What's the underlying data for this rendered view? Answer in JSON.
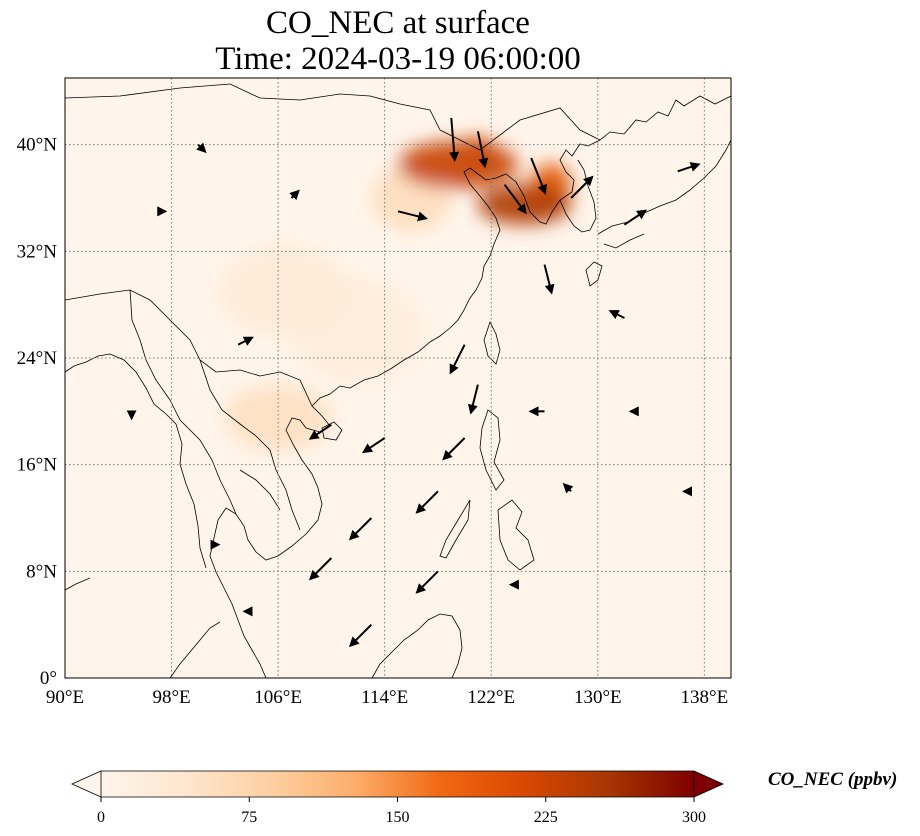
{
  "title": {
    "line1": "CO_NEC at surface",
    "line2": "Time: 2024-03-19 06:00:00"
  },
  "map": {
    "projection": "PlateCarree",
    "lon_range": [
      90,
      140
    ],
    "lat_range": [
      0,
      45
    ],
    "gridlines": "dotted",
    "lon_ticks": [
      {
        "value": 90,
        "label": "90°E"
      },
      {
        "value": 98,
        "label": "98°E"
      },
      {
        "value": 106,
        "label": "106°E"
      },
      {
        "value": 114,
        "label": "114°E"
      },
      {
        "value": 122,
        "label": "122°E"
      },
      {
        "value": 130,
        "label": "130°E"
      },
      {
        "value": 138,
        "label": "138°E"
      }
    ],
    "lat_ticks": [
      {
        "value": 0,
        "label": "0°"
      },
      {
        "value": 8,
        "label": "8°N"
      },
      {
        "value": 16,
        "label": "16°N"
      },
      {
        "value": 24,
        "label": "24°N"
      },
      {
        "value": 32,
        "label": "32°N"
      },
      {
        "value": 40,
        "label": "40°N"
      }
    ],
    "background_color": "#fff5eb",
    "features": [
      "coastlines",
      "country-borders",
      "wind-vectors"
    ]
  },
  "colorbar": {
    "label": "CO_NEC (ppbv)",
    "min": 0,
    "max": 300,
    "extend": "both",
    "colormap": "OrRd",
    "ticks": [
      {
        "value": 0,
        "label": "0"
      },
      {
        "value": 75,
        "label": "75"
      },
      {
        "value": 150,
        "label": "150"
      },
      {
        "value": 225,
        "label": "225"
      },
      {
        "value": 300,
        "label": "300"
      }
    ],
    "stops": [
      "#fff5eb",
      "#fee6ce",
      "#fdd0a2",
      "#fdae6b",
      "#f16913",
      "#d94801",
      "#a63603",
      "#7f0000"
    ]
  },
  "field": {
    "plumes": [
      {
        "lon": 119.5,
        "lat": 38.5,
        "lon_r": 4.5,
        "lat_r": 1.8,
        "value": 230
      },
      {
        "lon": 124.5,
        "lat": 35.5,
        "lon_r": 3.5,
        "lat_r": 1.5,
        "value": 250
      },
      {
        "lon": 126.5,
        "lat": 37.0,
        "lon_r": 1.5,
        "lat_r": 1.6,
        "value": 200
      },
      {
        "lon": 121.0,
        "lat": 39.8,
        "lon_r": 1.2,
        "lat_r": 0.8,
        "value": 210
      },
      {
        "lon": 116.0,
        "lat": 36.0,
        "lon_r": 3.0,
        "lat_r": 2.5,
        "value": 60
      },
      {
        "lon": 106.0,
        "lat": 19.5,
        "lon_r": 4.0,
        "lat_r": 2.5,
        "value": 55
      },
      {
        "lon": 106.5,
        "lat": 29.0,
        "lon_r": 5.0,
        "lat_r": 3.5,
        "value": 30
      },
      {
        "lon": 112.0,
        "lat": 26.0,
        "lon_r": 5.0,
        "lat_r": 4.0,
        "value": 22
      }
    ]
  },
  "wind_vectors": [
    {
      "lon": 115,
      "lat": 35,
      "u": 4,
      "v": -1
    },
    {
      "lon": 119,
      "lat": 42,
      "u": 0.5,
      "v": -6
    },
    {
      "lon": 121,
      "lat": 41,
      "u": 1,
      "v": -5
    },
    {
      "lon": 123,
      "lat": 37,
      "u": 3,
      "v": -4
    },
    {
      "lon": 125,
      "lat": 39,
      "u": 2,
      "v": -5
    },
    {
      "lon": 128,
      "lat": 36,
      "u": 3,
      "v": 3
    },
    {
      "lon": 126,
      "lat": 31,
      "u": 1,
      "v": -4
    },
    {
      "lon": 121,
      "lat": 22,
      "u": -1,
      "v": -4
    },
    {
      "lon": 120,
      "lat": 25,
      "u": -2,
      "v": -4
    },
    {
      "lon": 114,
      "lat": 18,
      "u": -3,
      "v": -2
    },
    {
      "lon": 110,
      "lat": 19,
      "u": -3,
      "v": -2
    },
    {
      "lon": 118,
      "lat": 14,
      "u": -3,
      "v": -3
    },
    {
      "lon": 113,
      "lat": 12,
      "u": -3,
      "v": -3
    },
    {
      "lon": 110,
      "lat": 9,
      "u": -3,
      "v": -3
    },
    {
      "lon": 118,
      "lat": 8,
      "u": -3,
      "v": -3
    },
    {
      "lon": 113,
      "lat": 4,
      "u": -3,
      "v": -3
    },
    {
      "lon": 120,
      "lat": 18,
      "u": -3,
      "v": -3
    },
    {
      "lon": 132,
      "lat": 34,
      "u": 3,
      "v": 2
    },
    {
      "lon": 136,
      "lat": 38,
      "u": 3,
      "v": 1
    },
    {
      "lon": 132,
      "lat": 27,
      "u": -2,
      "v": 1
    },
    {
      "lon": 103,
      "lat": 25,
      "u": 2,
      "v": 1
    },
    {
      "lon": 97,
      "lat": 35,
      "u": 1,
      "v": 0
    },
    {
      "lon": 100,
      "lat": 40,
      "u": 1,
      "v": -1
    },
    {
      "lon": 107,
      "lat": 36,
      "u": 1,
      "v": 1
    },
    {
      "lon": 95,
      "lat": 20,
      "u": 0,
      "v": -1
    },
    {
      "lon": 101,
      "lat": 10,
      "u": 1,
      "v": 0
    },
    {
      "lon": 104,
      "lat": 5,
      "u": -1,
      "v": 0
    },
    {
      "lon": 128,
      "lat": 14,
      "u": -1,
      "v": 1
    },
    {
      "lon": 133,
      "lat": 20,
      "u": -1,
      "v": 0
    },
    {
      "lon": 126,
      "lat": 20,
      "u": -2,
      "v": 0
    },
    {
      "lon": 137,
      "lat": 14,
      "u": -1,
      "v": 0
    },
    {
      "lon": 124,
      "lat": 7,
      "u": -1,
      "v": 0
    }
  ]
}
